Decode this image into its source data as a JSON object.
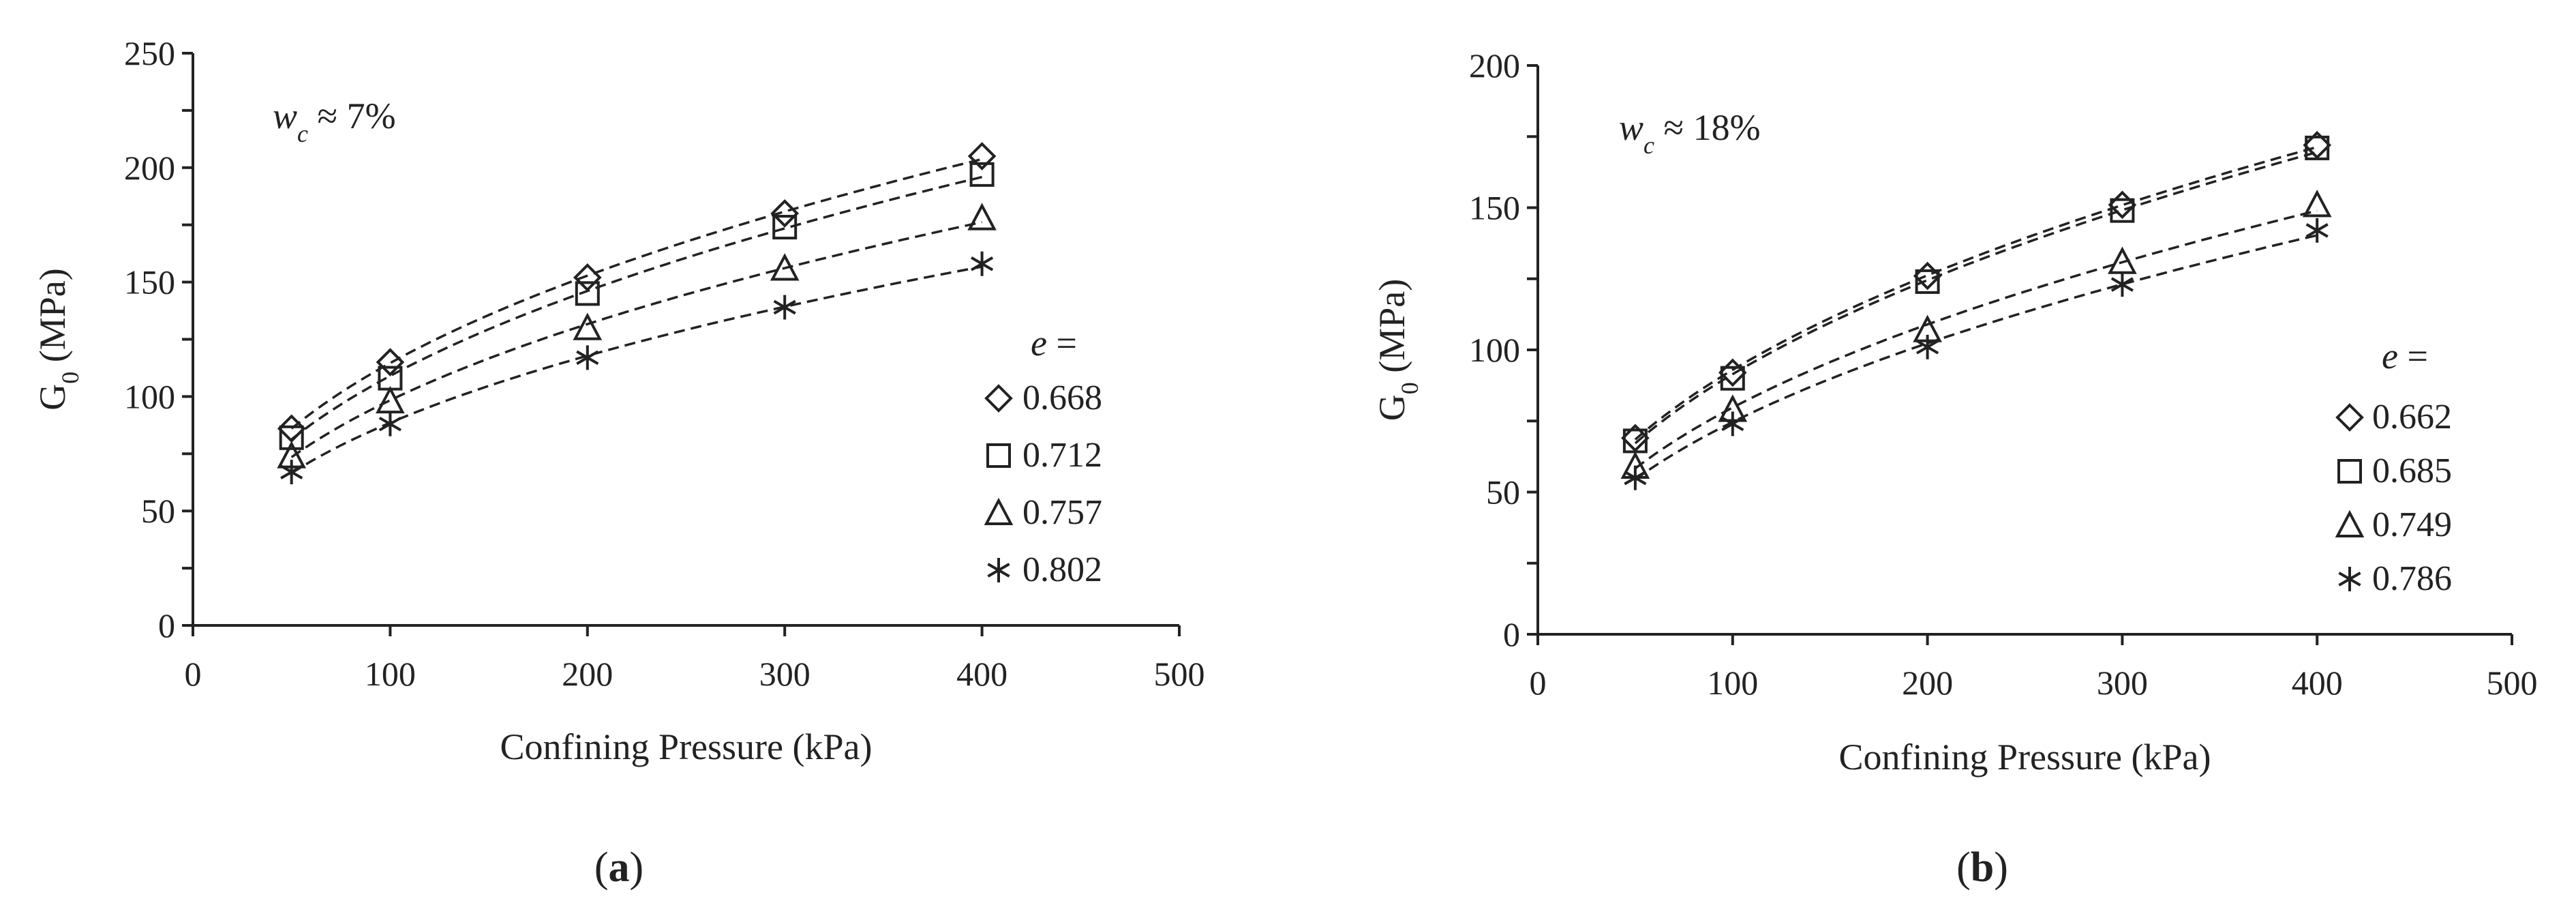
{
  "chart_data": [
    {
      "type": "scatter",
      "panel_label": "(a)",
      "annotation": {
        "symbol": "w",
        "subscript": "c",
        "text": " ≈ 7%"
      },
      "xlabel": "Confining Pressure (kPa)",
      "ylabel": "G",
      "ylabel_sub": "0",
      "ylabel_unit": " (MPa)",
      "xlim": [
        0,
        500
      ],
      "ylim": [
        0,
        250
      ],
      "xticks": [
        0,
        100,
        200,
        300,
        400,
        500
      ],
      "yticks": [
        0,
        50,
        100,
        150,
        200,
        250
      ],
      "grid": false,
      "legend_title": "e =",
      "legend_position": "right",
      "x": [
        50,
        100,
        200,
        300,
        400
      ],
      "series": [
        {
          "name": "0.668",
          "marker": "diamond",
          "values": [
            86,
            115,
            152,
            180,
            205
          ]
        },
        {
          "name": "0.712",
          "marker": "square",
          "values": [
            82,
            108,
            145,
            174,
            197
          ]
        },
        {
          "name": "0.757",
          "marker": "triangle",
          "values": [
            74,
            98,
            130,
            156,
            178
          ]
        },
        {
          "name": "0.802",
          "marker": "asterisk",
          "values": [
            67,
            88,
            117,
            139,
            158
          ]
        }
      ],
      "trendline": "dashed power fit"
    },
    {
      "type": "scatter",
      "panel_label": "(b)",
      "annotation": {
        "symbol": "w",
        "subscript": "c",
        "text": " ≈ 18%"
      },
      "xlabel": "Confining Pressure (kPa)",
      "ylabel": "G",
      "ylabel_sub": "0",
      "ylabel_unit": " (MPa)",
      "xlim": [
        0,
        500
      ],
      "ylim": [
        0,
        200
      ],
      "xticks": [
        0,
        100,
        200,
        300,
        400,
        500
      ],
      "yticks": [
        0,
        50,
        100,
        150,
        200
      ],
      "grid": false,
      "legend_title": "e =",
      "legend_position": "right",
      "x": [
        50,
        100,
        200,
        300,
        400
      ],
      "series": [
        {
          "name": "0.662",
          "marker": "diamond",
          "values": [
            69,
            92,
            126,
            151,
            172
          ]
        },
        {
          "name": "0.685",
          "marker": "square",
          "values": [
            68,
            90,
            124,
            149,
            171
          ]
        },
        {
          "name": "0.749",
          "marker": "triangle",
          "values": [
            59,
            79,
            107,
            131,
            151
          ]
        },
        {
          "name": "0.786",
          "marker": "asterisk",
          "values": [
            55,
            74,
            101,
            123,
            142
          ]
        }
      ],
      "trendline": "dashed power fit"
    }
  ]
}
